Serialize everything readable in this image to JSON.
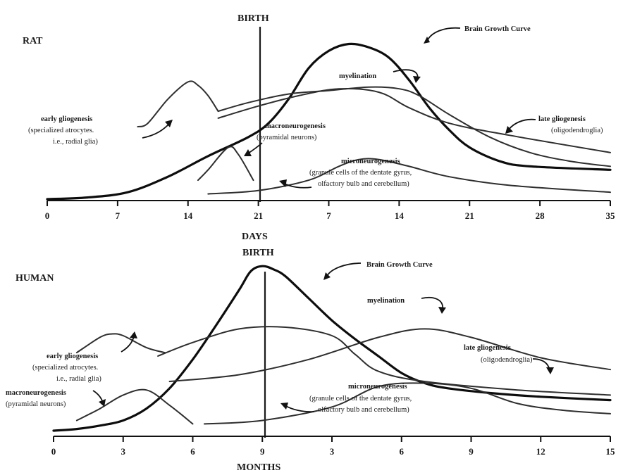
{
  "chart_data": [
    {
      "type": "line",
      "panel_label": "RAT",
      "birth_label": "BIRTH",
      "xlabel": "DAYS",
      "x_ticks": [
        "0",
        "7",
        "14",
        "21",
        "7",
        "14",
        "21",
        "28",
        "35"
      ],
      "series": [
        {
          "name": "Brain Growth Curve",
          "points": [
            [
              0,
              0.0
            ],
            [
              4,
              0.01
            ],
            [
              8,
              0.04
            ],
            [
              12,
              0.13
            ],
            [
              16,
              0.25
            ],
            [
              20,
              0.36
            ],
            [
              22,
              0.44
            ],
            [
              24,
              0.58
            ],
            [
              26,
              0.76
            ],
            [
              28,
              0.86
            ],
            [
              30,
              0.9
            ],
            [
              32,
              0.88
            ],
            [
              34,
              0.82
            ],
            [
              36,
              0.69
            ],
            [
              38,
              0.53
            ],
            [
              40,
              0.4
            ],
            [
              42,
              0.3
            ],
            [
              45,
              0.22
            ],
            [
              48,
              0.19
            ],
            [
              56,
              0.17
            ]
          ]
        },
        {
          "name": "early gliogenesis",
          "points": [
            [
              9,
              0.42
            ],
            [
              10,
              0.44
            ],
            [
              12,
              0.58
            ],
            [
              14,
              0.68
            ],
            [
              15,
              0.66
            ],
            [
              16,
              0.6
            ],
            [
              17,
              0.51
            ]
          ]
        },
        {
          "name": "macroneurogenesis",
          "points": [
            [
              15,
              0.11
            ],
            [
              16,
              0.17
            ],
            [
              18,
              0.3
            ],
            [
              19,
              0.26
            ],
            [
              20.5,
              0.11
            ]
          ]
        },
        {
          "name": "myelination",
          "points": [
            [
              17,
              0.51
            ],
            [
              20,
              0.56
            ],
            [
              24,
              0.61
            ],
            [
              28,
              0.63
            ],
            [
              32,
              0.65
            ],
            [
              35,
              0.64
            ],
            [
              37,
              0.6
            ],
            [
              40,
              0.49
            ],
            [
              44,
              0.36
            ],
            [
              48,
              0.27
            ],
            [
              52,
              0.22
            ],
            [
              56,
              0.19
            ]
          ]
        },
        {
          "name": "late gliogenesis",
          "points": [
            [
              17,
              0.47
            ],
            [
              21,
              0.54
            ],
            [
              25,
              0.6
            ],
            [
              29,
              0.64
            ],
            [
              33,
              0.62
            ],
            [
              36,
              0.53
            ],
            [
              40,
              0.44
            ],
            [
              46,
              0.37
            ],
            [
              56,
              0.27
            ]
          ]
        },
        {
          "name": "microneurogenesis",
          "points": [
            [
              16,
              0.03
            ],
            [
              21,
              0.05
            ],
            [
              26,
              0.11
            ],
            [
              29,
              0.19
            ],
            [
              31,
              0.23
            ],
            [
              33,
              0.23
            ],
            [
              36,
              0.19
            ],
            [
              40,
              0.13
            ],
            [
              46,
              0.08
            ],
            [
              56,
              0.04
            ]
          ]
        }
      ],
      "annotations": [
        {
          "title": "Brain Growth Curve",
          "lines": []
        },
        {
          "title": "myelination",
          "lines": []
        },
        {
          "title": "early gliogenesis",
          "lines": [
            "(specialized atrocytes.",
            "i.e., radial glia)"
          ]
        },
        {
          "title": "macroneurogenesis",
          "lines": [
            "(pyramidal neurons)"
          ]
        },
        {
          "title": "late gliogenesis",
          "lines": [
            "(oligodendroglia)"
          ]
        },
        {
          "title": "microneurogenesis",
          "lines": [
            "(granule cells of the dentate gyrus,",
            "olfactory bulb and cerebellum)"
          ]
        }
      ]
    },
    {
      "type": "line",
      "panel_label": "HUMAN",
      "birth_label": "BIRTH",
      "xlabel": "MONTHS",
      "x_ticks": [
        "0",
        "3",
        "6",
        "9",
        "3",
        "6",
        "9",
        "12",
        "15"
      ],
      "series": [
        {
          "name": "Brain Growth Curve",
          "points": [
            [
              0,
              0.0
            ],
            [
              1,
              0.01
            ],
            [
              2,
              0.03
            ],
            [
              3,
              0.06
            ],
            [
              4,
              0.13
            ],
            [
              5,
              0.25
            ],
            [
              6,
              0.42
            ],
            [
              7,
              0.62
            ],
            [
              8,
              0.83
            ],
            [
              8.5,
              0.94
            ],
            [
              9,
              0.97
            ],
            [
              9.5,
              0.95
            ],
            [
              10,
              0.91
            ],
            [
              11,
              0.78
            ],
            [
              12,
              0.65
            ],
            [
              13,
              0.54
            ],
            [
              14,
              0.44
            ],
            [
              15,
              0.34
            ],
            [
              16,
              0.28
            ],
            [
              17,
              0.25
            ],
            [
              19,
              0.22
            ],
            [
              21,
              0.2
            ],
            [
              24,
              0.18
            ]
          ]
        },
        {
          "name": "early gliogenesis",
          "points": [
            [
              1,
              0.46
            ],
            [
              2,
              0.55
            ],
            [
              2.5,
              0.57
            ],
            [
              3,
              0.56
            ],
            [
              4,
              0.49
            ],
            [
              4.8,
              0.46
            ]
          ]
        },
        {
          "name": "macroneurogenesis",
          "points": [
            [
              1,
              0.06
            ],
            [
              2,
              0.13
            ],
            [
              3,
              0.21
            ],
            [
              4,
              0.24
            ],
            [
              5,
              0.15
            ],
            [
              6,
              0.04
            ]
          ]
        },
        {
          "name": "myelination",
          "points": [
            [
              5,
              0.29
            ],
            [
              8,
              0.33
            ],
            [
              11,
              0.42
            ],
            [
              14,
              0.55
            ],
            [
              16,
              0.6
            ],
            [
              18,
              0.55
            ],
            [
              21,
              0.43
            ],
            [
              24,
              0.36
            ]
          ]
        },
        {
          "name": "late gliogenesis",
          "points": [
            [
              4.5,
              0.44
            ],
            [
              6,
              0.52
            ],
            [
              8,
              0.6
            ],
            [
              10,
              0.61
            ],
            [
              12,
              0.56
            ],
            [
              13,
              0.45
            ],
            [
              14,
              0.35
            ],
            [
              16,
              0.29
            ],
            [
              20,
              0.24
            ],
            [
              24,
              0.21
            ]
          ]
        },
        {
          "name": "microneurogenesis",
          "points": [
            [
              6.5,
              0.04
            ],
            [
              9,
              0.06
            ],
            [
              12,
              0.14
            ],
            [
              14,
              0.26
            ],
            [
              16,
              0.28
            ],
            [
              18,
              0.25
            ],
            [
              20,
              0.16
            ],
            [
              22,
              0.12
            ],
            [
              24,
              0.1
            ]
          ]
        }
      ],
      "annotations": [
        {
          "title": "Brain Growth Curve",
          "lines": []
        },
        {
          "title": "myelination",
          "lines": []
        },
        {
          "title": "early gliogenesis",
          "lines": [
            "(specialized atrocytes.",
            "i.e., radial glia)"
          ]
        },
        {
          "title": "macroneurogenesis",
          "lines": [
            "(pyramidal neurons)"
          ]
        },
        {
          "title": "late gliogenesis",
          "lines": [
            "(oligodendroglia)"
          ]
        },
        {
          "title": "microneurogenesis",
          "lines": [
            "(granule cells of the dentate gyrus,",
            "olfactory bulb and cerebellum)"
          ]
        }
      ]
    }
  ]
}
